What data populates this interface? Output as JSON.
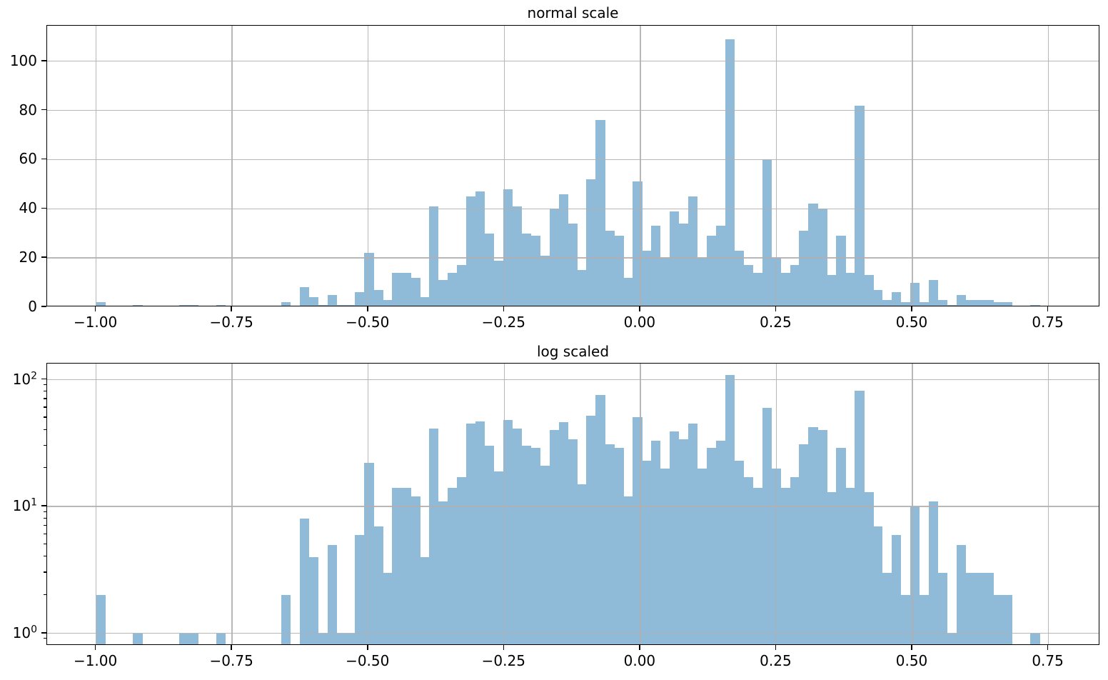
{
  "figure": {
    "background": "#ffffff",
    "bar_color": "#8fbbd9",
    "grid_color": "#b0b0b0",
    "spine_color": "#000000",
    "text_color": "#000000"
  },
  "chart_data": {
    "type": "histogram",
    "bin_start": -1.0,
    "bin_width": 0.017,
    "counts": [
      2,
      0,
      0,
      0,
      1,
      0,
      0,
      0,
      0,
      1,
      1,
      0,
      0,
      1,
      0,
      0,
      0,
      0,
      0,
      0,
      2,
      0,
      8,
      4,
      1,
      5,
      1,
      1,
      6,
      22,
      7,
      3,
      14,
      14,
      12,
      4,
      41,
      11,
      14,
      17,
      45,
      47,
      30,
      19,
      48,
      41,
      30,
      29,
      21,
      40,
      46,
      34,
      15,
      52,
      76,
      31,
      29,
      12,
      51,
      23,
      33,
      20,
      39,
      34,
      45,
      20,
      29,
      33,
      109,
      23,
      17,
      14,
      60,
      20,
      14,
      17,
      31,
      42,
      40,
      13,
      29,
      14,
      82,
      13,
      7,
      3,
      6,
      2,
      10,
      2,
      11,
      3,
      1,
      5,
      3,
      3,
      3,
      2,
      2,
      0,
      0,
      1
    ],
    "xlim": [
      -1.09,
      0.845
    ],
    "xticks": [
      -1.0,
      -0.75,
      -0.5,
      -0.25,
      0.0,
      0.25,
      0.5,
      0.75
    ],
    "xtick_labels": [
      "−1.00",
      "−0.75",
      "−0.50",
      "−0.25",
      "0.00",
      "0.25",
      "0.50",
      "0.75"
    ],
    "grid": true,
    "legend": "none",
    "panels": [
      {
        "title": "normal scale",
        "yscale": "linear",
        "ylim": [
          0,
          114.45
        ],
        "yticks": [
          0,
          20,
          40,
          60,
          80,
          100
        ],
        "ytick_labels": [
          "0",
          "20",
          "40",
          "60",
          "80",
          "100"
        ]
      },
      {
        "title": "log scaled",
        "yscale": "log",
        "ylim": [
          0.8,
          134
        ],
        "yticks": [
          1,
          10,
          100
        ],
        "ytick_exponents": [
          "0",
          "1",
          "2"
        ],
        "minor_yticks": [
          0.9,
          2,
          3,
          4,
          5,
          6,
          7,
          8,
          9,
          20,
          30,
          40,
          50,
          60,
          70,
          80,
          90
        ]
      }
    ]
  }
}
